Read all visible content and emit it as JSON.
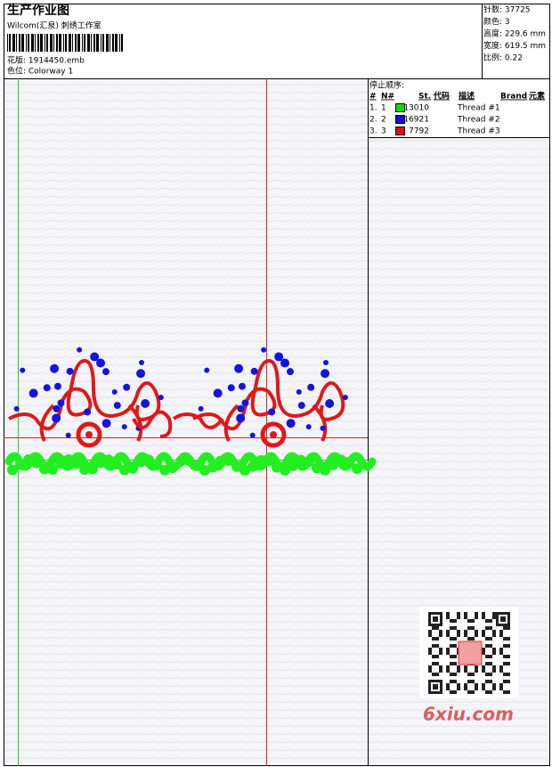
{
  "header": {
    "title": "生产作业图",
    "company": "Wilcom(汇泉) 刺绣工作室",
    "design": "花版: 1914450.emb",
    "colorway": "色位: Colorway 1"
  },
  "stats": [
    "针数: 37725",
    "颜色: 3",
    "高度: 229.6 mm",
    "宽度: 619.5 mm",
    "比例: 0.22"
  ],
  "thread_table": {
    "title": "停止顺序:",
    "columns": [
      "#",
      "N#",
      "St.",
      "代码",
      "描述",
      "Brand",
      "元素"
    ],
    "rows": [
      {
        "index": "1.",
        "number": "1",
        "color": "#00e000",
        "code": "13010",
        "description": "Thread #1"
      },
      {
        "index": "2.",
        "number": "2",
        "color": "#1010e0",
        "code": "16921",
        "description": "Thread #2"
      },
      {
        "index": "3.",
        "number": "3",
        "color": "#e01010",
        "code": "7792",
        "description": "Thread #3"
      }
    ]
  },
  "watermark": "6xiu.com"
}
